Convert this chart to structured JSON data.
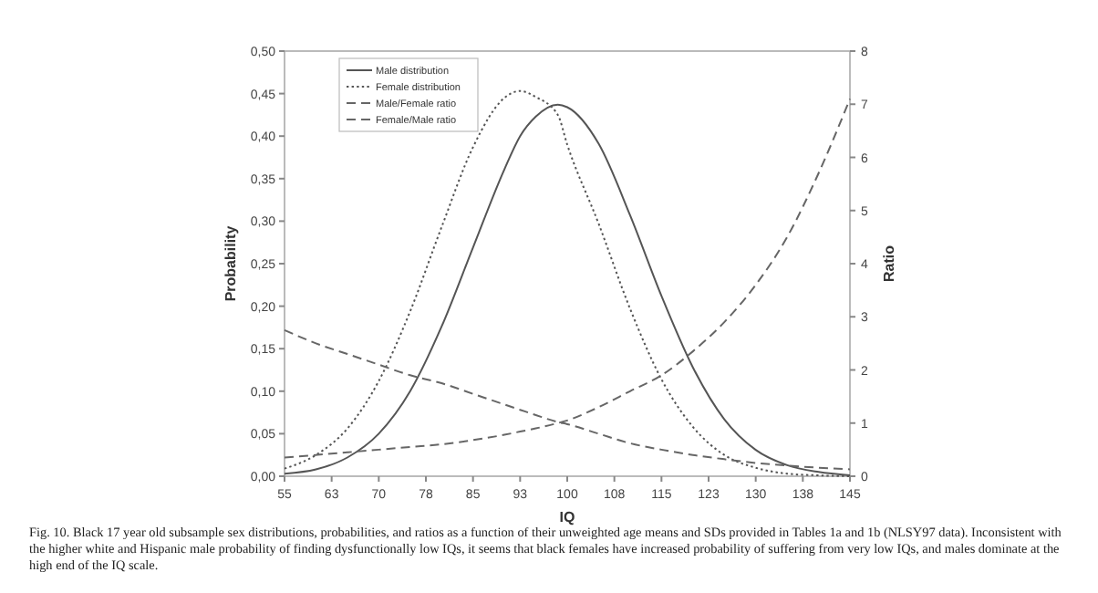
{
  "chart_data": {
    "type": "line",
    "xlabel": "IQ",
    "ylabel": "Probability",
    "y2label": "Ratio",
    "x": [
      55,
      60,
      65,
      70,
      75,
      80,
      85,
      90,
      92.5,
      95,
      98.5,
      100,
      105,
      110,
      115,
      120,
      125,
      130,
      135,
      140,
      145
    ],
    "xlim": [
      55,
      145
    ],
    "xticks": [
      55,
      {
        "value": 62.5,
        "label": "63"
      },
      70,
      {
        "value": 77.5,
        "label": "78"
      },
      85,
      {
        "value": 92.5,
        "label": "93"
      },
      100,
      {
        "value": 107.5,
        "label": "108"
      },
      115,
      {
        "value": 122.5,
        "label": "123"
      },
      130,
      {
        "value": 137.5,
        "label": "138"
      },
      145
    ],
    "ylim": [
      0,
      0.5
    ],
    "yticks": [
      {
        "value": 0,
        "label": "0,00"
      },
      {
        "value": 0.05,
        "label": "0,05"
      },
      {
        "value": 0.1,
        "label": "0,10"
      },
      {
        "value": 0.15,
        "label": "0,15"
      },
      {
        "value": 0.2,
        "label": "0,20"
      },
      {
        "value": 0.25,
        "label": "0,25"
      },
      {
        "value": 0.3,
        "label": "0,30"
      },
      {
        "value": 0.35,
        "label": "0,35"
      },
      {
        "value": 0.4,
        "label": "0,40"
      },
      {
        "value": 0.45,
        "label": "0,45"
      },
      {
        "value": 0.5,
        "label": "0,50"
      }
    ],
    "y2lim": [
      0,
      8
    ],
    "y2ticks": [
      0,
      1,
      2,
      3,
      4,
      5,
      6,
      7,
      8
    ],
    "legend": "top left",
    "grid": false,
    "series": [
      {
        "name": "Male distribution",
        "color": "#555555",
        "line_style": "solid",
        "values": [
          0.003,
          0.008,
          0.022,
          0.05,
          0.1,
          0.176,
          0.269,
          0.361,
          0.4,
          0.423,
          0.437,
          0.434,
          0.391,
          0.307,
          0.212,
          0.128,
          0.067,
          0.031,
          0.013,
          0.005,
          0.001
        ]
      },
      {
        "name": "Female distribution",
        "color": "#555555",
        "line_style": "dotted",
        "values": [
          0.009,
          0.025,
          0.056,
          0.112,
          0.194,
          0.293,
          0.387,
          0.445,
          0.453,
          0.446,
          0.425,
          0.39,
          0.297,
          0.197,
          0.114,
          0.058,
          0.025,
          0.01,
          0.003,
          0.001,
          0
        ]
      },
      {
        "name": "Male/Female ratio",
        "color": "#666666",
        "line_style": "dashed",
        "axis": "y2",
        "values": [
          0.35,
          0.4,
          0.45,
          0.5,
          0.55,
          0.6,
          0.68,
          0.78,
          0.84,
          0.9,
          1.0,
          1.05,
          1.3,
          1.6,
          1.9,
          2.35,
          2.9,
          3.6,
          4.5,
          5.7,
          7.1
        ]
      },
      {
        "name": "Female/Male ratio",
        "color": "#666666",
        "line_style": "dashed",
        "axis": "y2",
        "values": [
          2.75,
          2.5,
          2.3,
          2.1,
          1.9,
          1.75,
          1.55,
          1.35,
          1.25,
          1.15,
          1.02,
          0.98,
          0.8,
          0.62,
          0.5,
          0.4,
          0.32,
          0.25,
          0.2,
          0.16,
          0.13
        ]
      }
    ],
    "annotations": [
      "Fig. 10. Black 17 year old subsample sex distributions, probabilities, and ratios as a function of their unweighted age means and SDs provided in Tables 1a and 1b (NLSY97 data). Inconsistent with the higher white and Hispanic male probability of finding dysfunctionally low IQs, it seems that black females have increased probability of suffering from very low IQs, and males dominate at the high end of the IQ scale."
    ]
  }
}
